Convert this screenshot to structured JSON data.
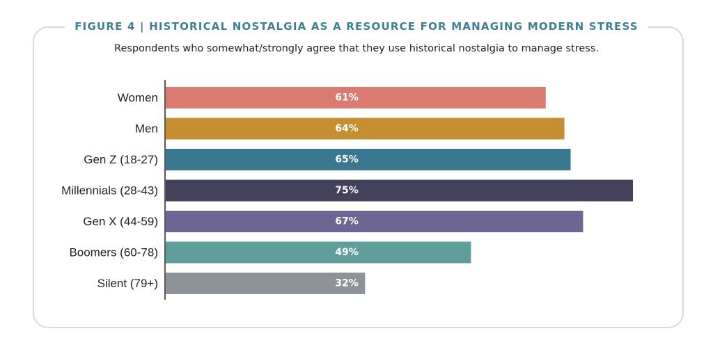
{
  "figure_title": "FIGURE 4  |  HISTORICAL NOSTALGIA AS A RESOURCE FOR MANAGING MODERN STRESS",
  "subtitle": "Respondents who somewhat/strongly agree that they use historical nostalgia to manage stress.",
  "chart_data": {
    "type": "bar",
    "orientation": "horizontal",
    "categories": [
      "Women",
      "Men",
      "Gen Z (18-27)",
      "Millennials (28-43)",
      "Gen X (44-59)",
      "Boomers (60-78)",
      "Silent (79+)"
    ],
    "values": [
      61,
      64,
      65,
      75,
      67,
      49,
      32
    ],
    "data_labels": [
      "61%",
      "64%",
      "65%",
      "75%",
      "67%",
      "49%",
      "32%"
    ],
    "colors": [
      "#d97b70",
      "#c58e30",
      "#3a7890",
      "#43425a",
      "#6b6692",
      "#5f9e9a",
      "#8e9299"
    ],
    "title": "FIGURE 4  |  HISTORICAL NOSTALGIA AS A RESOURCE FOR MANAGING MODERN STRESS",
    "subtitle": "Respondents who somewhat/strongly agree that they use historical nostalgia to manage stress.",
    "xlim": [
      0,
      75
    ],
    "grid": false,
    "legend": "none"
  }
}
